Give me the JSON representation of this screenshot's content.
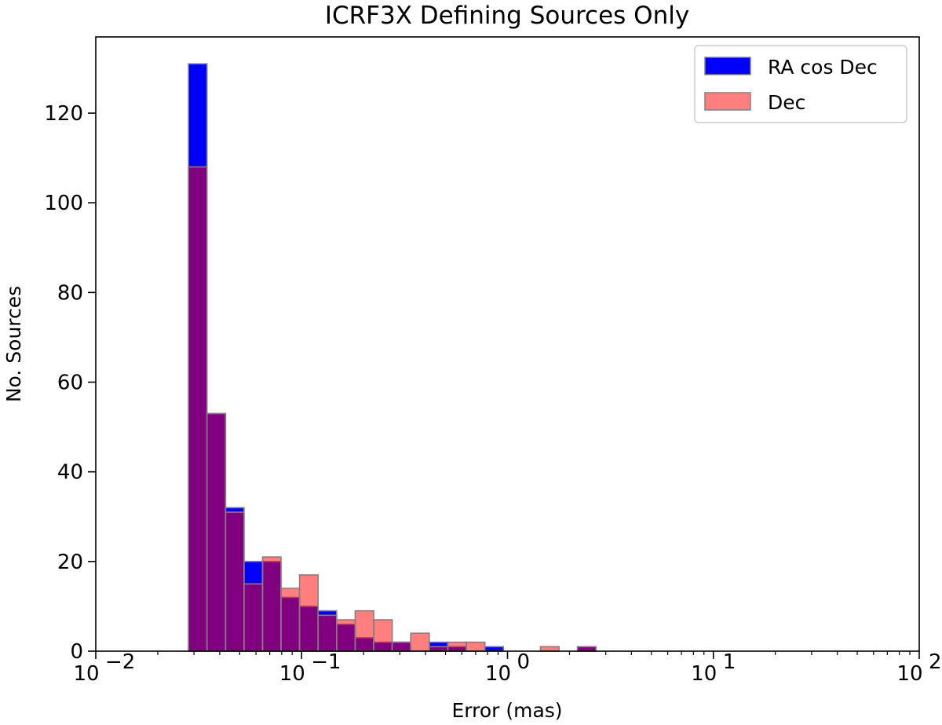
{
  "chart_data": {
    "type": "bar",
    "title": "ICRF3X Defining Sources Only",
    "xlabel": "Error (mas)",
    "ylabel": "No. Sources",
    "x_scale": "log",
    "xlim": [
      0.01,
      100
    ],
    "ylim": [
      0,
      137
    ],
    "grid": false,
    "legend_position": "top-right",
    "x_ticks": [
      {
        "value": 0.01,
        "base": "10",
        "exp": "−2"
      },
      {
        "value": 0.1,
        "base": "10",
        "exp": "−1"
      },
      {
        "value": 1,
        "base": "10",
        "exp": "0"
      },
      {
        "value": 10,
        "base": "10",
        "exp": "1"
      },
      {
        "value": 100,
        "base": "10",
        "exp": "2"
      }
    ],
    "y_ticks": [
      0,
      20,
      40,
      60,
      80,
      100,
      120
    ],
    "bin_edges": [
      0.0282,
      0.0347,
      0.0427,
      0.0525,
      0.0646,
      0.0794,
      0.0977,
      0.1202,
      0.1479,
      0.182,
      0.2239,
      0.2754,
      0.3388,
      0.4169,
      0.5129,
      0.631,
      0.7762,
      0.955,
      1.1749,
      1.4454,
      1.7783,
      2.1878,
      2.6915
    ],
    "series": [
      {
        "name": "RA cos Dec",
        "color": "#0000ff",
        "alpha": 1.0,
        "values": [
          131,
          53,
          32,
          20,
          20,
          12,
          10,
          9,
          6,
          3,
          2,
          2,
          0,
          2,
          1,
          0,
          1,
          0,
          0,
          0,
          0,
          1
        ]
      },
      {
        "name": "Dec",
        "color": "#ff0000",
        "alpha": 0.5,
        "values": [
          108,
          53,
          31,
          15,
          21,
          14,
          17,
          8,
          7,
          9,
          7,
          2,
          4,
          1,
          2,
          2,
          0,
          0,
          0,
          1,
          0,
          1
        ]
      }
    ],
    "edge_color": "#808080"
  }
}
